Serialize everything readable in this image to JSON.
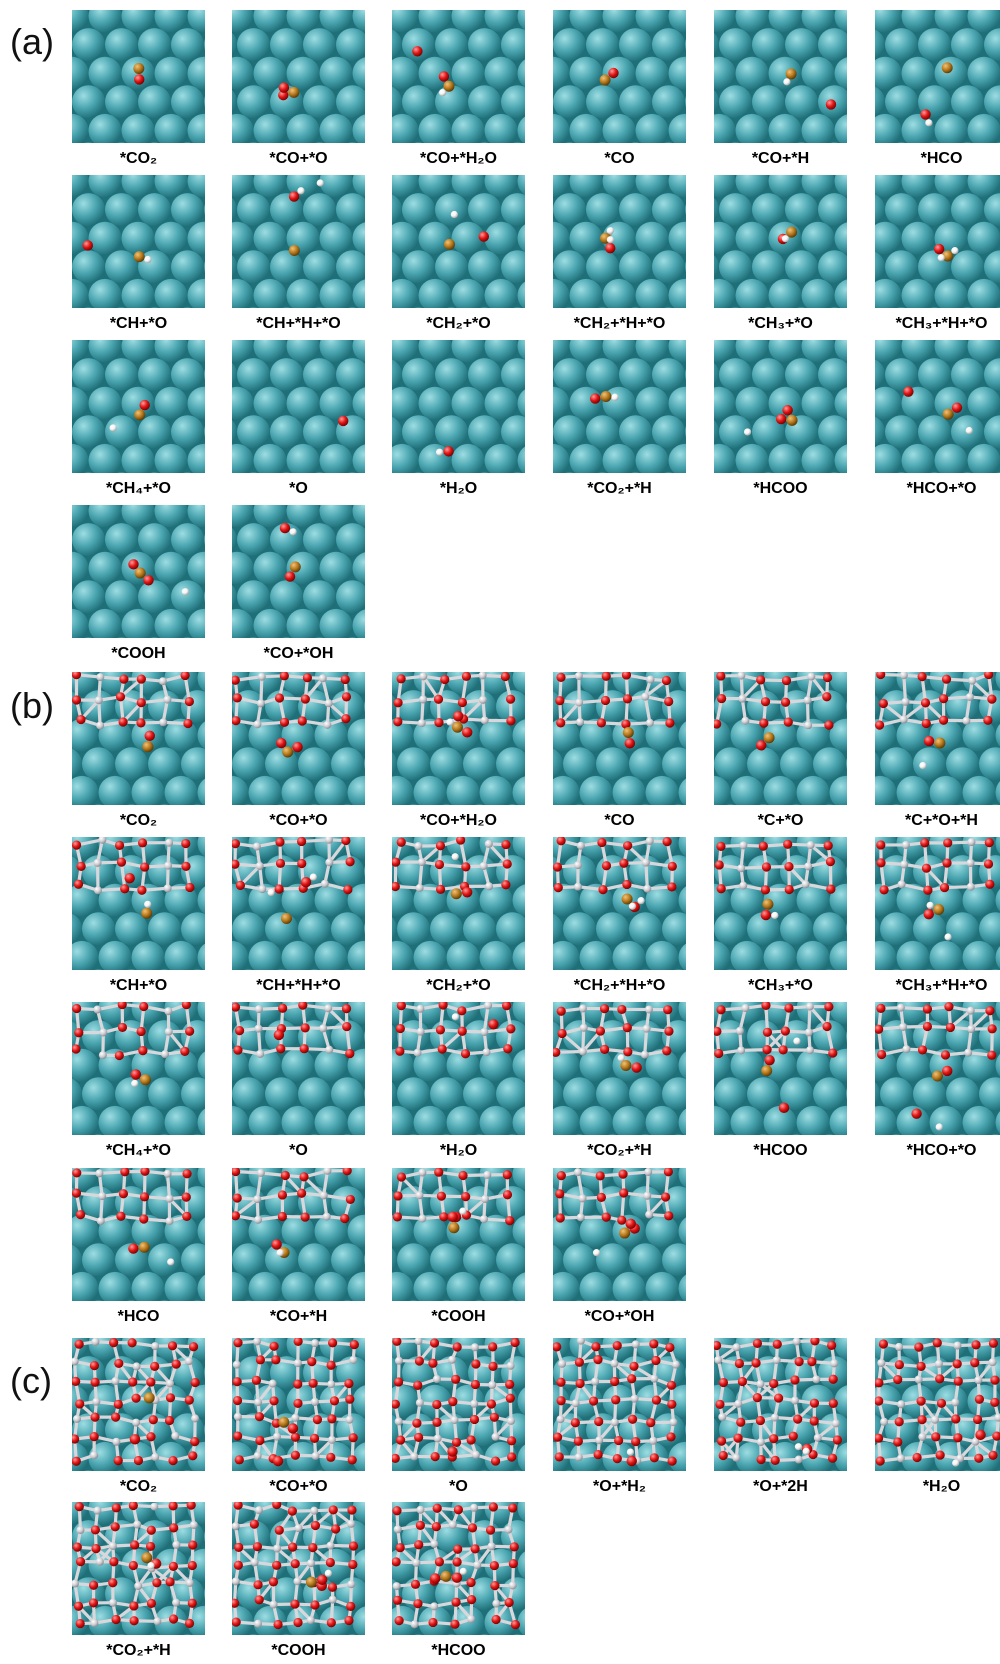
{
  "colors": {
    "surface_atom": "#4aa5b0",
    "surface_atom_light": "#9ddde3",
    "surface_atom_dark": "#1f6f78",
    "oxygen": "#e01414",
    "carbon": "#b87a1c",
    "hydrogen": "#f4f4f4",
    "support_metal": "#cfcfd4"
  },
  "panels": [
    {
      "label": "(a)",
      "support": false,
      "tiles": [
        {
          "caption": "*CO₂"
        },
        {
          "caption": "*CO+*O"
        },
        {
          "caption": "*CO+*H₂O"
        },
        {
          "caption": "*CO"
        },
        {
          "caption": "*CO+*H"
        },
        {
          "caption": "*HCO"
        },
        {
          "caption": "*CH+*O"
        },
        {
          "caption": "*CH+*H+*O"
        },
        {
          "caption": "*CH₂+*O"
        },
        {
          "caption": "*CH₂+*H+*O"
        },
        {
          "caption": "*CH₃+*O"
        },
        {
          "caption": "*CH₃+*H+*O"
        },
        {
          "caption": "*CH₄+*O"
        },
        {
          "caption": "*O"
        },
        {
          "caption": "*H₂O"
        },
        {
          "caption": "*CO₂+*H"
        },
        {
          "caption": "*HCOO"
        },
        {
          "caption": "*HCO+*O"
        },
        {
          "caption": "*COOH"
        },
        {
          "caption": "*CO+*OH"
        }
      ]
    },
    {
      "label": "(b)",
      "support": "strip",
      "tiles": [
        {
          "caption": "*CO₂"
        },
        {
          "caption": "*CO+*O"
        },
        {
          "caption": "*CO+*H₂O"
        },
        {
          "caption": "*CO"
        },
        {
          "caption": "*C+*O"
        },
        {
          "caption": "*C+*O+*H"
        },
        {
          "caption": "*CH+*O"
        },
        {
          "caption": "*CH+*H+*O"
        },
        {
          "caption": "*CH₂+*O"
        },
        {
          "caption": "*CH₂+*H+*O"
        },
        {
          "caption": "*CH₃+*O"
        },
        {
          "caption": "*CH₃+*H+*O"
        },
        {
          "caption": "*CH₄+*O"
        },
        {
          "caption": "*O"
        },
        {
          "caption": "*H₂O"
        },
        {
          "caption": "*CO₂+*H"
        },
        {
          "caption": "*HCOO"
        },
        {
          "caption": "*HCO+*O"
        },
        {
          "caption": "*HCO"
        },
        {
          "caption": "*CO+*H"
        },
        {
          "caption": "*COOH"
        },
        {
          "caption": "*CO+*OH"
        }
      ]
    },
    {
      "label": "(c)",
      "support": "full",
      "tiles": [
        {
          "caption": "*CO₂"
        },
        {
          "caption": "*CO+*O"
        },
        {
          "caption": "*O"
        },
        {
          "caption": "*O+*H₂"
        },
        {
          "caption": "*O+*2H"
        },
        {
          "caption": "*H₂O"
        },
        {
          "caption": "*CO₂+*H"
        },
        {
          "caption": "*COOH"
        },
        {
          "caption": "*HCOO"
        }
      ]
    }
  ]
}
